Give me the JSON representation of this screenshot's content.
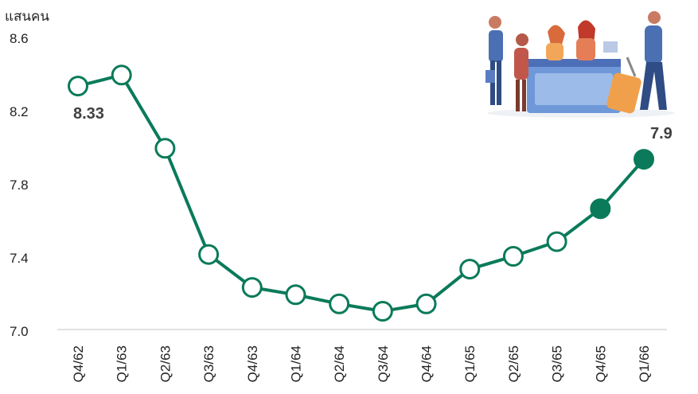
{
  "chart_data": {
    "type": "line",
    "ylabel": "แสนคน",
    "categories": [
      "Q4/62",
      "Q1/63",
      "Q2/63",
      "Q3/63",
      "Q4/63",
      "Q1/64",
      "Q2/64",
      "Q3/64",
      "Q4/64",
      "Q1/65",
      "Q2/65",
      "Q3/65",
      "Q4/65",
      "Q1/66"
    ],
    "series": [
      {
        "values": [
          8.33,
          8.39,
          7.99,
          7.41,
          7.23,
          7.19,
          7.14,
          7.1,
          7.14,
          7.33,
          7.4,
          7.48,
          7.66,
          7.93
        ],
        "filled": [
          false,
          false,
          false,
          false,
          false,
          false,
          false,
          false,
          false,
          false,
          false,
          false,
          true,
          true
        ],
        "color": "#0a7a5a"
      }
    ],
    "ylim": [
      7.0,
      8.6
    ],
    "yticks": [
      "7.0",
      "7.4",
      "7.8",
      "8.2",
      "8.6"
    ],
    "data_labels": [
      {
        "index": 0,
        "text": "8.33"
      },
      {
        "index": 13,
        "text": "7.9"
      }
    ],
    "decoration": "airport-checkin-illustration-icon"
  }
}
